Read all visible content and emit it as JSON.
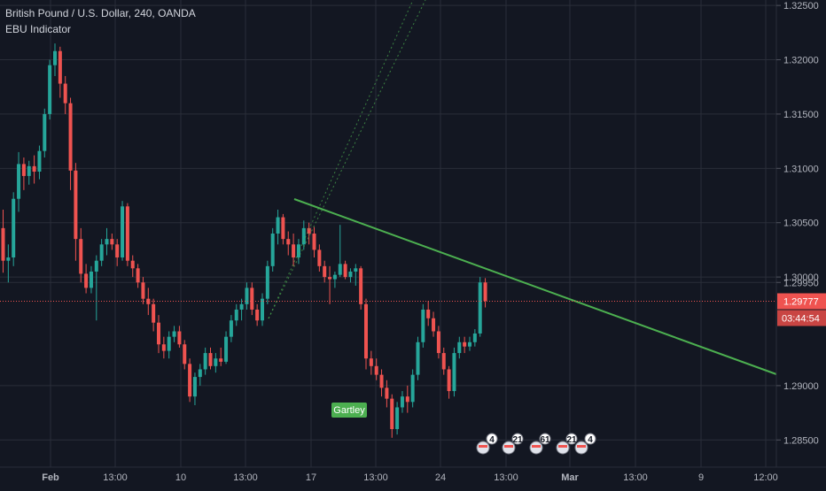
{
  "header": {
    "symbol_line": "British Pound / U.S. Dollar, 240, OANDA",
    "indicator_line": "EBU Indicator"
  },
  "chart_data": {
    "type": "candlestick",
    "title": "British Pound / U.S. Dollar, 240, OANDA",
    "ylim": [
      1.2825,
      1.3255
    ],
    "y_ticks": [
      1.325,
      1.32,
      1.315,
      1.31,
      1.305,
      1.3,
      1.2995,
      1.29,
      1.285
    ],
    "y_tick_labels": [
      "1.32500",
      "1.32000",
      "1.31500",
      "1.31000",
      "1.30500",
      "1.30000",
      "1.29950",
      "1.29000",
      "1.28500"
    ],
    "x_tick_labels": [
      "Feb",
      "13:00",
      "10",
      "13:00",
      "17",
      "13:00",
      "24",
      "13:00",
      "Mar",
      "13:00",
      "9",
      "12:00"
    ],
    "last_price": 1.29777,
    "last_price_label": "1.29777",
    "countdown_label": "03:44:54",
    "pattern_label": "Gartley",
    "grid": true,
    "colors": {
      "up": "#26a69a",
      "down": "#ef5350",
      "trendline": "#4caf50",
      "price_line": "#ef5350",
      "background": "#131722",
      "grid": "#2a2e39",
      "pattern_label_bg": "#4caf50"
    },
    "candles": [
      [
        1.3045,
        1.3062,
        1.3004,
        1.3015
      ],
      [
        1.3015,
        1.303,
        1.2995,
        1.3018
      ],
      [
        1.3018,
        1.3078,
        1.301,
        1.3072
      ],
      [
        1.3072,
        1.3115,
        1.306,
        1.3104
      ],
      [
        1.3104,
        1.311,
        1.308,
        1.3093
      ],
      [
        1.3093,
        1.3107,
        1.3085,
        1.3102
      ],
      [
        1.3102,
        1.3112,
        1.3086,
        1.3097
      ],
      [
        1.3097,
        1.3121,
        1.309,
        1.3116
      ],
      [
        1.3116,
        1.3155,
        1.311,
        1.315
      ],
      [
        1.315,
        1.32,
        1.3145,
        1.3195
      ],
      [
        1.3195,
        1.3215,
        1.3185,
        1.3208
      ],
      [
        1.3208,
        1.3212,
        1.3165,
        1.3178
      ],
      [
        1.3178,
        1.3185,
        1.315,
        1.316
      ],
      [
        1.316,
        1.3165,
        1.308,
        1.3098
      ],
      [
        1.3098,
        1.3105,
        1.3015,
        1.3035
      ],
      [
        1.3035,
        1.3045,
        1.2995,
        1.3003
      ],
      [
        1.3003,
        1.3012,
        1.2985,
        1.299
      ],
      [
        1.299,
        1.301,
        1.2985,
        1.3005
      ],
      [
        1.3005,
        1.302,
        1.296,
        1.3015
      ],
      [
        1.3015,
        1.3035,
        1.301,
        1.303
      ],
      [
        1.303,
        1.3045,
        1.302,
        1.3035
      ],
      [
        1.3035,
        1.304,
        1.3025,
        1.303
      ],
      [
        1.303,
        1.3035,
        1.301,
        1.3018
      ],
      [
        1.3018,
        1.307,
        1.3015,
        1.3065
      ],
      [
        1.3065,
        1.3068,
        1.301,
        1.3015
      ],
      [
        1.3015,
        1.302,
        1.3,
        1.3008
      ],
      [
        1.3008,
        1.3012,
        1.299,
        1.2995
      ],
      [
        1.2995,
        1.3,
        1.2975,
        1.298
      ],
      [
        1.298,
        1.299,
        1.2965,
        1.2975
      ],
      [
        1.2975,
        1.298,
        1.295,
        1.2958
      ],
      [
        1.2958,
        1.2965,
        1.293,
        1.2938
      ],
      [
        1.2938,
        1.2945,
        1.2925,
        1.2932
      ],
      [
        1.2932,
        1.295,
        1.2925,
        1.2945
      ],
      [
        1.2945,
        1.2955,
        1.294,
        1.295
      ],
      [
        1.295,
        1.2955,
        1.2935,
        1.2938
      ],
      [
        1.2938,
        1.2942,
        1.2915,
        1.292
      ],
      [
        1.292,
        1.2925,
        1.2885,
        1.289
      ],
      [
        1.289,
        1.2912,
        1.2882,
        1.2908
      ],
      [
        1.2908,
        1.292,
        1.29,
        1.2915
      ],
      [
        1.2915,
        1.2935,
        1.291,
        1.293
      ],
      [
        1.293,
        1.2935,
        1.2915,
        1.2918
      ],
      [
        1.2918,
        1.293,
        1.2912,
        1.2925
      ],
      [
        1.2925,
        1.2935,
        1.2918,
        1.2922
      ],
      [
        1.2922,
        1.295,
        1.292,
        1.2945
      ],
      [
        1.2945,
        1.2965,
        1.294,
        1.296
      ],
      [
        1.296,
        1.2975,
        1.2955,
        1.297
      ],
      [
        1.297,
        1.298,
        1.296,
        1.2975
      ],
      [
        1.2975,
        1.2995,
        1.297,
        1.299
      ],
      [
        1.299,
        1.2995,
        1.2965,
        1.297
      ],
      [
        1.297,
        1.2975,
        1.2955,
        1.296
      ],
      [
        1.296,
        1.2985,
        1.2955,
        1.298
      ],
      [
        1.298,
        1.3015,
        1.2975,
        1.301
      ],
      [
        1.301,
        1.3045,
        1.3005,
        1.304
      ],
      [
        1.304,
        1.3062,
        1.303,
        1.3055
      ],
      [
        1.3055,
        1.3058,
        1.303,
        1.3035
      ],
      [
        1.3035,
        1.3042,
        1.302,
        1.303
      ],
      [
        1.303,
        1.304,
        1.301,
        1.3018
      ],
      [
        1.3018,
        1.3035,
        1.3012,
        1.303
      ],
      [
        1.303,
        1.3052,
        1.3025,
        1.3045
      ],
      [
        1.3045,
        1.305,
        1.303,
        1.304
      ],
      [
        1.304,
        1.3046,
        1.3018,
        1.3025
      ],
      [
        1.3025,
        1.303,
        1.3005,
        1.301
      ],
      [
        1.301,
        1.3015,
        1.2995,
        1.3
      ],
      [
        1.3,
        1.301,
        1.2975,
        1.2998
      ],
      [
        1.2998,
        1.3005,
        1.299,
        1.3002
      ],
      [
        1.3002,
        1.3048,
        1.3,
        1.3012
      ],
      [
        1.3012,
        1.3015,
        1.2998,
        1.3
      ],
      [
        1.3,
        1.3008,
        1.2995,
        1.3005
      ],
      [
        1.3005,
        1.3012,
        1.2992,
        1.3008
      ],
      [
        1.3008,
        1.301,
        1.297,
        1.2975
      ],
      [
        1.2975,
        1.298,
        1.2915,
        1.2925
      ],
      [
        1.2925,
        1.2932,
        1.291,
        1.2918
      ],
      [
        1.2918,
        1.2925,
        1.2905,
        1.291
      ],
      [
        1.291,
        1.2915,
        1.289,
        1.2898
      ],
      [
        1.2898,
        1.2905,
        1.288,
        1.2888
      ],
      [
        1.2888,
        1.2892,
        1.2852,
        1.286
      ],
      [
        1.286,
        1.2885,
        1.2855,
        1.288
      ],
      [
        1.288,
        1.2895,
        1.2875,
        1.289
      ],
      [
        1.289,
        1.29,
        1.2875,
        1.2885
      ],
      [
        1.2885,
        1.2915,
        1.288,
        1.291
      ],
      [
        1.291,
        1.2945,
        1.2905,
        1.294
      ],
      [
        1.294,
        1.2975,
        1.2935,
        1.297
      ],
      [
        1.297,
        1.2978,
        1.2955,
        1.2962
      ],
      [
        1.2962,
        1.2968,
        1.2945,
        1.295
      ],
      [
        1.295,
        1.2955,
        1.2925,
        1.293
      ],
      [
        1.293,
        1.2935,
        1.291,
        1.2915
      ],
      [
        1.2915,
        1.2918,
        1.2888,
        1.2895
      ],
      [
        1.2895,
        1.2935,
        1.289,
        1.293
      ],
      [
        1.293,
        1.2945,
        1.2925,
        1.294
      ],
      [
        1.294,
        1.2945,
        1.293,
        1.2936
      ],
      [
        1.2936,
        1.2945,
        1.2932,
        1.294
      ],
      [
        1.294,
        1.2952,
        1.2936,
        1.2948
      ],
      [
        1.2948,
        1.3,
        1.2945,
        1.2995
      ],
      [
        1.2995,
        1.2999,
        1.2972,
        1.2978
      ]
    ],
    "event_flags": [
      "4",
      "21",
      "61",
      "21",
      "4"
    ]
  }
}
